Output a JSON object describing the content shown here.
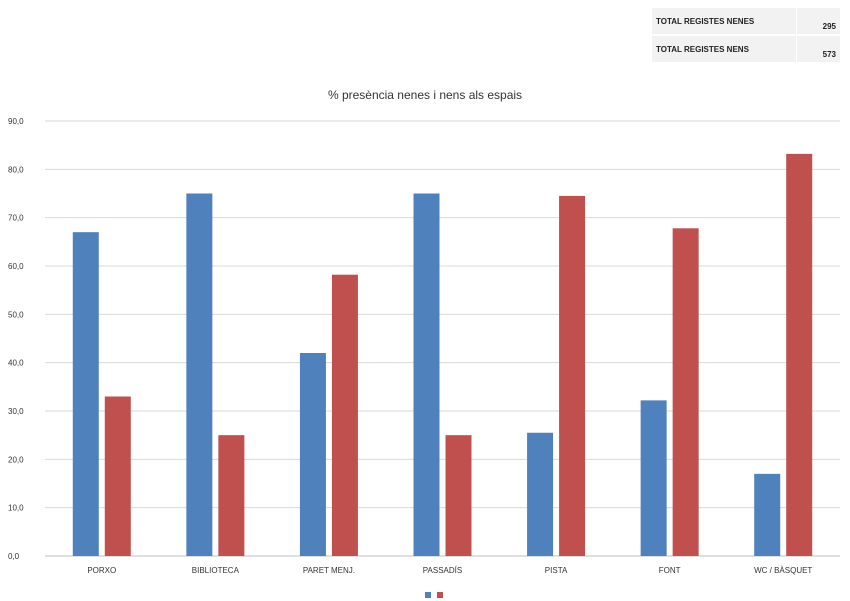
{
  "totals": [
    {
      "label": "TOTAL REGISTES NENES",
      "value": "295"
    },
    {
      "label": "TOTAL REGISTES NENS",
      "value": "573"
    }
  ],
  "chart_data": {
    "type": "bar",
    "title": "% presència nenes i nens als espais",
    "xlabel": "",
    "ylabel": "",
    "categories": [
      "PORXO",
      "BIBLIOTECA",
      "PARET MENJ.",
      "PASSADÍS",
      "PISTA",
      "FONT",
      "WC / BÀSQUET"
    ],
    "series": [
      {
        "color": "#4f81bd",
        "values": [
          67.0,
          75.0,
          42.0,
          75.0,
          25.5,
          32.2,
          17.0
        ]
      },
      {
        "color": "#c0504d",
        "values": [
          33.0,
          25.0,
          58.2,
          25.0,
          74.5,
          67.8,
          83.2
        ]
      }
    ],
    "ylim": [
      0,
      90
    ],
    "yticks": [
      "0,0",
      "10,0",
      "20,0",
      "30,0",
      "40,0",
      "50,0",
      "60,0",
      "70,0",
      "80,0",
      "90,0"
    ],
    "grid": true,
    "legend": "bottom"
  }
}
